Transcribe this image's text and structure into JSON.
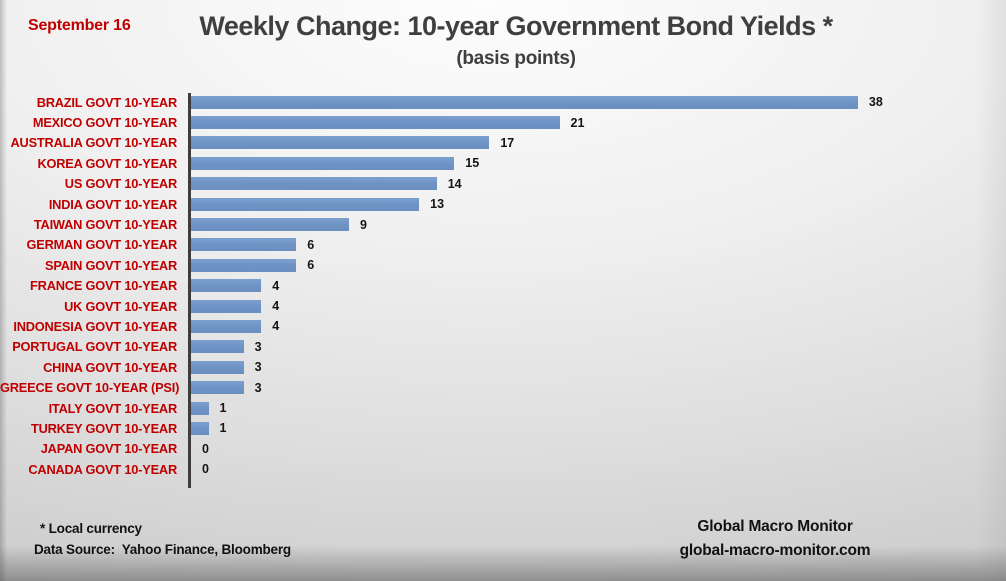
{
  "header": {
    "date": "September 16",
    "title": "Weekly Change: 10-year Government Bond Yields *",
    "subtitle": "(basis points)"
  },
  "chart_data": {
    "type": "bar",
    "orientation": "horizontal",
    "title": "Weekly Change: 10-year Government Bond Yields *",
    "subtitle": "(basis points)",
    "xlabel": "",
    "ylabel": "",
    "xlim": [
      0,
      46
    ],
    "grid": false,
    "legend": false,
    "data_labels": true,
    "bar_color": "#6D92C3",
    "category_label_color": "#C00000",
    "value_label_color": "#141414",
    "axis_line_color": "#3d3d3d",
    "categories": [
      "BRAZIL GOVT 10-YEAR",
      "MEXICO GOVT 10-YEAR",
      "AUSTRALIA GOVT 10-YEAR",
      "KOREA GOVT 10-YEAR",
      "US GOVT 10-YEAR",
      "INDIA GOVT 10-YEAR",
      "TAIWAN GOVT 10-YEAR",
      "GERMAN GOVT 10-YEAR",
      "SPAIN GOVT 10-YEAR",
      "FRANCE GOVT 10-YEAR",
      "UK GOVT 10-YEAR",
      "INDONESIA GOVT 10-YEAR",
      "PORTUGAL GOVT 10-YEAR",
      "CHINA GOVT 10-YEAR",
      "GREECE GOVT 10-YEAR (PSI)",
      "ITALY GOVT 10-YEAR",
      "TURKEY GOVT 10-YEAR",
      "JAPAN GOVT 10-YEAR",
      "CANADA GOVT 10-YEAR"
    ],
    "values": [
      38,
      21,
      17,
      15,
      14,
      13,
      9,
      6,
      6,
      4,
      4,
      4,
      3,
      3,
      3,
      1,
      1,
      0,
      0
    ]
  },
  "footer": {
    "note": "* Local currency",
    "source": "Data Source:  Yahoo Finance, Bloomberg",
    "brand": "Global Macro Monitor",
    "brand_url": "global-macro-monitor.com"
  }
}
